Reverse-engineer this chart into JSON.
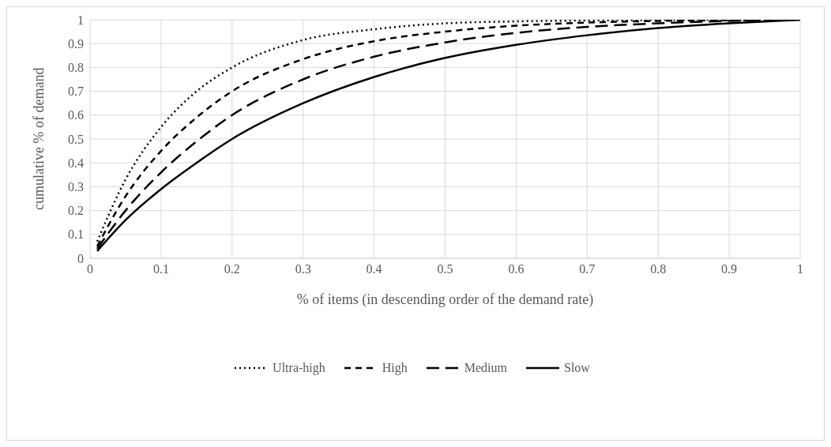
{
  "chart_data": {
    "type": "line",
    "xlabel": "% of items (in descending order of the demand rate)",
    "ylabel": "cumulative % of demand",
    "x": [
      0.01,
      0.05,
      0.1,
      0.15,
      0.2,
      0.3,
      0.4,
      0.5,
      0.6,
      0.7,
      0.8,
      0.9,
      1
    ],
    "series": [
      {
        "name": "Ultra-high",
        "color": "#000000",
        "line_style": "dotted",
        "values": [
          0.07,
          0.33,
          0.55,
          0.7,
          0.8,
          0.915,
          0.96,
          0.985,
          0.993,
          0.997,
          0.999,
          1,
          1
        ]
      },
      {
        "name": "High",
        "color": "#000000",
        "line_style": "dashed",
        "values": [
          0.05,
          0.26,
          0.45,
          0.59,
          0.7,
          0.835,
          0.91,
          0.95,
          0.975,
          0.988,
          0.995,
          0.998,
          1
        ]
      },
      {
        "name": "Medium",
        "color": "#000000",
        "line_style": "dashed",
        "values": [
          0.04,
          0.2,
          0.36,
          0.49,
          0.6,
          0.75,
          0.845,
          0.905,
          0.945,
          0.97,
          0.985,
          0.995,
          1
        ]
      },
      {
        "name": "Slow",
        "color": "#000000",
        "line_style": "solid",
        "values": [
          0.03,
          0.16,
          0.29,
          0.4,
          0.5,
          0.65,
          0.76,
          0.84,
          0.895,
          0.935,
          0.965,
          0.985,
          1
        ]
      }
    ],
    "xlim": [
      0,
      1
    ],
    "xticks": [
      0,
      0.1,
      0.2,
      0.3,
      0.4,
      0.5,
      0.6,
      0.7,
      0.8,
      0.9,
      1
    ],
    "ylim": [
      0,
      1
    ],
    "yticks": [
      0,
      0.1,
      0.2,
      0.3,
      0.4,
      0.5,
      0.6,
      0.7,
      0.8,
      0.9,
      1
    ],
    "grid": true,
    "legend": "bottom",
    "marker": "none"
  }
}
